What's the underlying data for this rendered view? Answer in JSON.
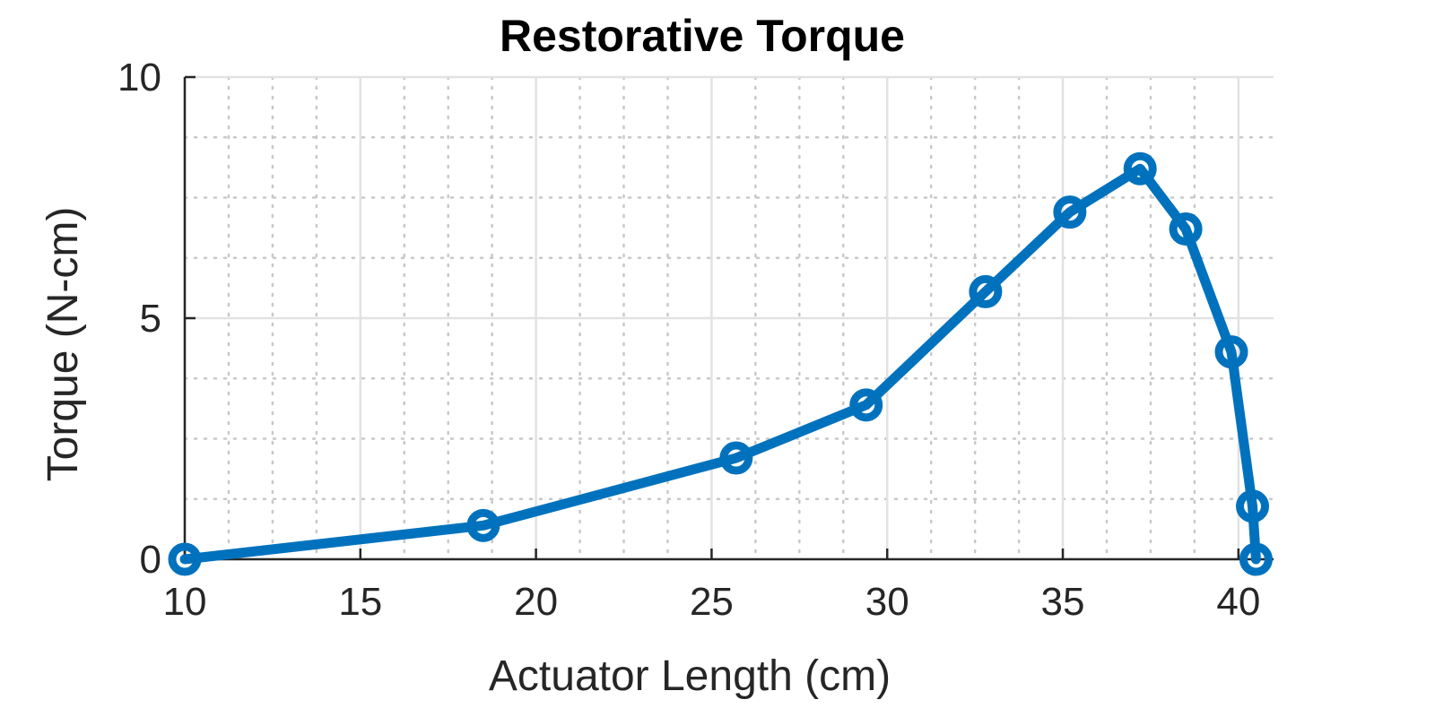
{
  "chart_data": {
    "type": "line",
    "title": "Restorative Torque",
    "xlabel": "Actuator Length (cm)",
    "ylabel": "Torque (N-cm)",
    "xlim": [
      10,
      41
    ],
    "ylim": [
      0,
      10
    ],
    "xticks": [
      10,
      15,
      20,
      25,
      30,
      35,
      40
    ],
    "yticks": [
      0,
      5,
      10
    ],
    "grid": true,
    "minor_grid": true,
    "series": [
      {
        "color": "#0072BD",
        "marker": "circle",
        "x": [
          10.0,
          18.5,
          25.7,
          29.4,
          32.8,
          35.2,
          37.2,
          38.5,
          39.8,
          40.4,
          40.5
        ],
        "y": [
          0.0,
          0.7,
          2.1,
          3.2,
          5.55,
          7.2,
          8.1,
          6.85,
          4.3,
          1.1,
          0.0
        ]
      }
    ]
  }
}
